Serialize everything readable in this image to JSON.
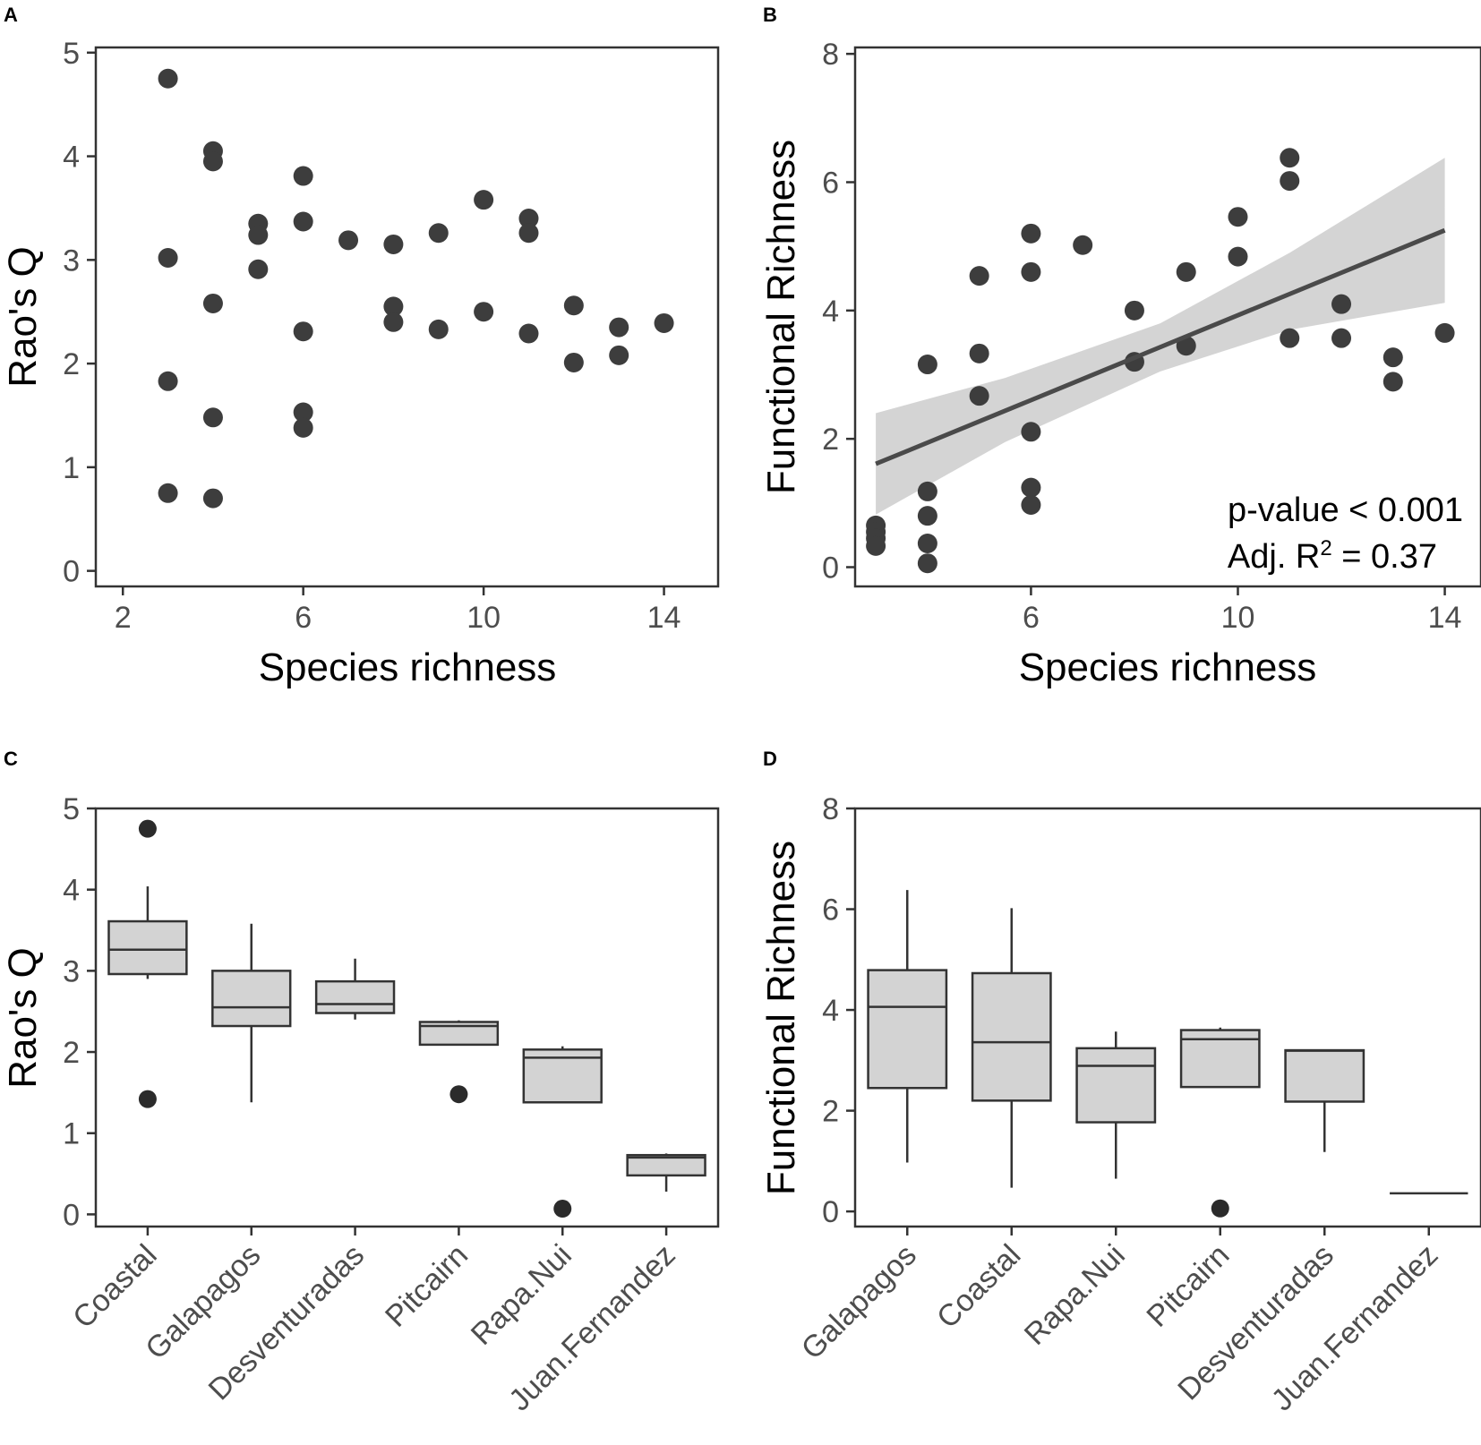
{
  "chart_data": [
    {
      "panel": "A",
      "type": "scatter",
      "xlabel": "Species richness",
      "ylabel": "Rao's Q",
      "xlim": [
        1.4,
        15.2
      ],
      "ylim": [
        -0.15,
        5.05
      ],
      "xticks": [
        2,
        6,
        10,
        14
      ],
      "yticks": [
        0,
        1,
        2,
        3,
        4,
        5
      ],
      "x": [
        3,
        3,
        3,
        3,
        4,
        4,
        4,
        4,
        4,
        5,
        5,
        5,
        6,
        6,
        6,
        6,
        6,
        7,
        8,
        8,
        8,
        9,
        9,
        10,
        10,
        11,
        11,
        11,
        12,
        12,
        13,
        13,
        14
      ],
      "y": [
        4.75,
        3.02,
        1.83,
        0.75,
        4.05,
        3.95,
        2.58,
        1.48,
        0.7,
        3.35,
        3.24,
        2.91,
        3.81,
        3.37,
        2.31,
        1.53,
        1.38,
        3.19,
        3.15,
        2.55,
        2.4,
        3.26,
        2.33,
        3.58,
        2.5,
        3.4,
        3.26,
        2.29,
        2.56,
        2.01,
        2.35,
        2.08,
        2.39
      ]
    },
    {
      "panel": "B",
      "type": "scatter",
      "xlabel": "Species richness",
      "ylabel": "Functional Richness",
      "xlim": [
        2.6,
        14.7
      ],
      "ylim": [
        -0.3,
        8.1
      ],
      "xticks": [
        6,
        10,
        14
      ],
      "yticks": [
        0,
        2,
        4,
        6,
        8
      ],
      "x": [
        3,
        3,
        3,
        3,
        4,
        4,
        4,
        4,
        4,
        5,
        5,
        5,
        6,
        6,
        6,
        6,
        6,
        7,
        8,
        8,
        9,
        9,
        10,
        10,
        11,
        11,
        11,
        12,
        12,
        13,
        13,
        14
      ],
      "y": [
        0.65,
        0.55,
        0.45,
        0.33,
        3.16,
        1.18,
        0.8,
        0.37,
        0.06,
        4.54,
        3.33,
        2.67,
        5.2,
        4.6,
        2.11,
        1.24,
        0.97,
        5.02,
        4.0,
        3.2,
        4.6,
        3.45,
        5.46,
        4.84,
        6.38,
        6.02,
        3.57,
        4.1,
        3.57,
        3.27,
        2.89,
        3.65
      ],
      "fit": {
        "x0": 3,
        "y0": 1.61,
        "x1": 14,
        "y1": 5.25
      },
      "ci_band": {
        "x": [
          3,
          5.5,
          8.5,
          11,
          14
        ],
        "lower": [
          0.82,
          1.95,
          3.05,
          3.7,
          4.12
        ],
        "upper": [
          2.4,
          2.95,
          3.8,
          4.9,
          6.38
        ]
      },
      "annotation_line1": "p-value < 0.001",
      "annotation_line2_prefix": "Adj. R",
      "annotation_line2_sup": "2",
      "annotation_line2_suffix": " = 0.37"
    },
    {
      "panel": "C",
      "type": "box",
      "xlabel": "",
      "ylabel": "Rao's Q",
      "ylim": [
        -0.15,
        5.0
      ],
      "yticks": [
        0,
        1,
        2,
        3,
        4,
        5
      ],
      "categories": [
        "Coastal",
        "Galapagos",
        "Desventuradas",
        "Pitcairn",
        "Rapa.Nui",
        "Juan.Fernandez"
      ],
      "boxes": [
        {
          "min": 2.9,
          "q1": 2.96,
          "median": 3.26,
          "q3": 3.61,
          "max": 4.04,
          "outliers": [
            4.75,
            1.42
          ]
        },
        {
          "min": 1.38,
          "q1": 2.32,
          "median": 2.55,
          "q3": 3.0,
          "max": 3.58,
          "outliers": []
        },
        {
          "min": 2.4,
          "q1": 2.48,
          "median": 2.59,
          "q3": 2.87,
          "max": 3.15,
          "outliers": []
        },
        {
          "min": 2.09,
          "q1": 2.09,
          "median": 2.32,
          "q3": 2.37,
          "max": 2.39,
          "outliers": [
            1.48
          ]
        },
        {
          "min": 1.38,
          "q1": 1.38,
          "median": 1.93,
          "q3": 2.03,
          "max": 2.07,
          "outliers": [
            0.07
          ]
        },
        {
          "min": 0.28,
          "q1": 0.48,
          "median": 0.7,
          "q3": 0.73,
          "max": 0.75,
          "outliers": []
        }
      ]
    },
    {
      "panel": "D",
      "type": "box",
      "xlabel": "",
      "ylabel": "Functional Richness",
      "ylim": [
        -0.3,
        8.0
      ],
      "yticks": [
        0,
        2,
        4,
        6,
        8
      ],
      "categories": [
        "Galapagos",
        "Coastal",
        "Rapa.Nui",
        "Pitcairn",
        "Desventuradas",
        "Juan.Fernandez"
      ],
      "boxes": [
        {
          "min": 0.97,
          "q1": 2.45,
          "median": 4.06,
          "q3": 4.79,
          "max": 6.38,
          "outliers": []
        },
        {
          "min": 0.47,
          "q1": 2.2,
          "median": 3.36,
          "q3": 4.73,
          "max": 6.02,
          "outliers": []
        },
        {
          "min": 0.65,
          "q1": 1.77,
          "median": 2.89,
          "q3": 3.24,
          "max": 3.57,
          "outliers": []
        },
        {
          "min": 2.47,
          "q1": 2.47,
          "median": 3.42,
          "q3": 3.6,
          "max": 3.65,
          "outliers": [
            0.06
          ]
        },
        {
          "min": 1.18,
          "q1": 2.18,
          "median": 3.19,
          "q3": 3.2,
          "max": 3.2,
          "outliers": []
        },
        {
          "min": 0.36,
          "q1": 0.36,
          "median": 0.36,
          "q3": 0.36,
          "max": 0.36,
          "outliers": []
        }
      ]
    }
  ]
}
